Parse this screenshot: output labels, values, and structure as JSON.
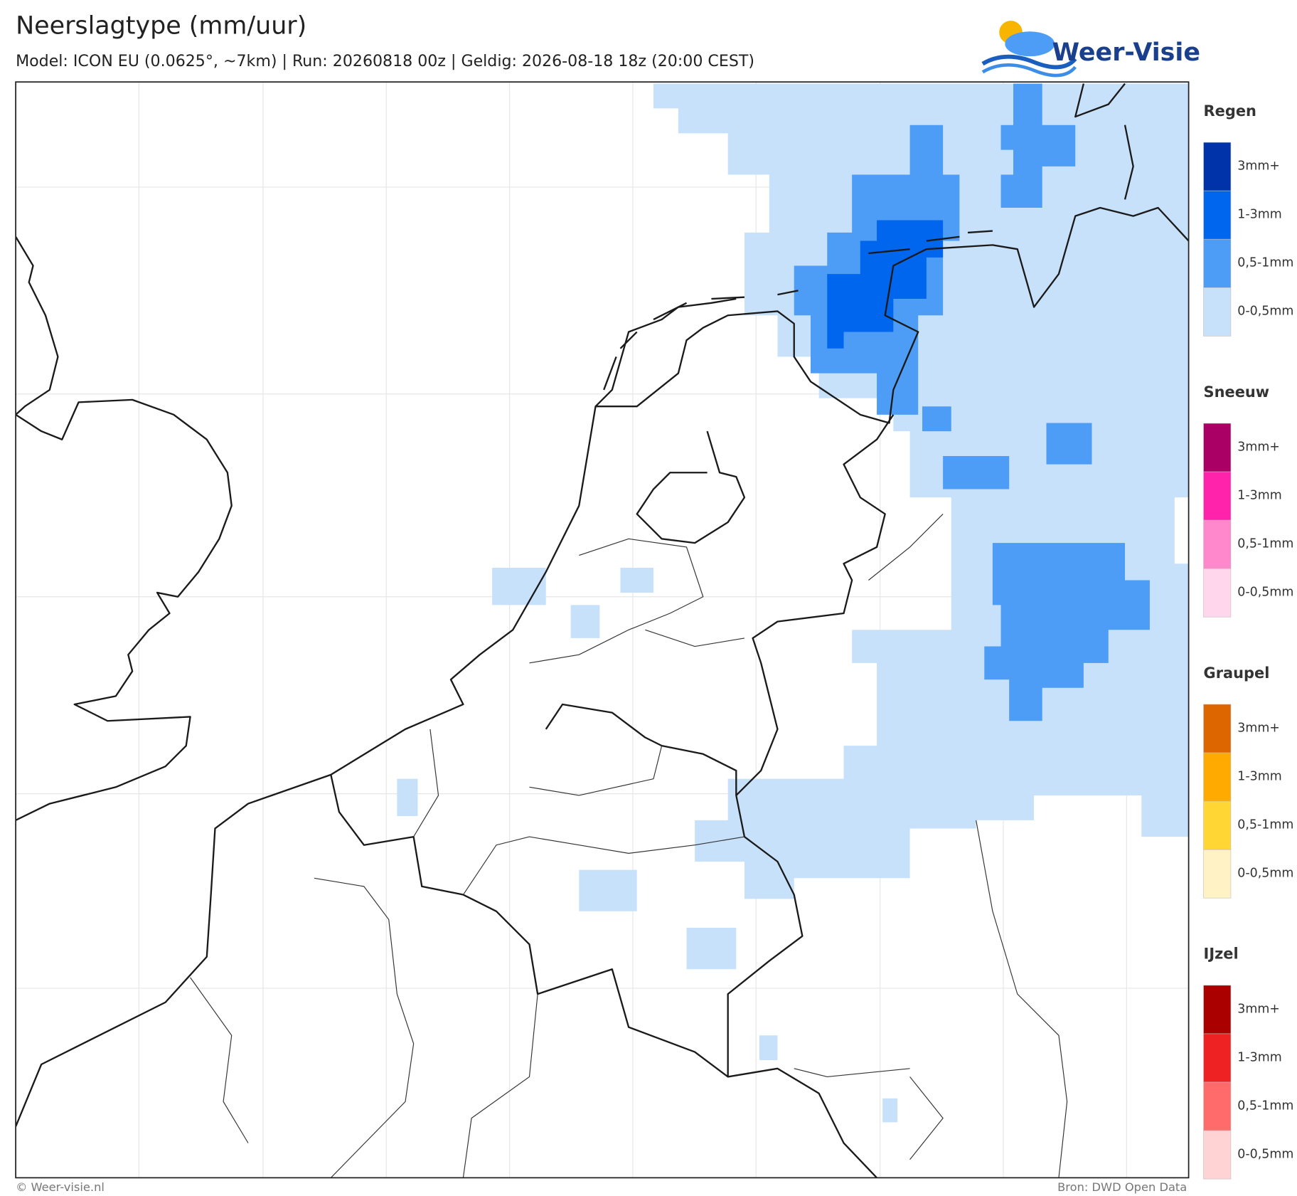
{
  "header": {
    "title": "Neerslagtype (mm/uur)",
    "subtitle": "Model: ICON EU (0.0625°, ~7km)  |  Run: 20260818 00z  |  Geldig: 2026-08-18 18z (20:00 CEST)",
    "logo": "Weer-Visie"
  },
  "legend": {
    "groups": [
      {
        "title": "Regen",
        "items": [
          {
            "label": "3mm+",
            "color": "#0033aa"
          },
          {
            "label": "1-3mm",
            "color": "#0066ee"
          },
          {
            "label": "0,5-1mm",
            "color": "#4d9cf5"
          },
          {
            "label": "0-0,5mm",
            "color": "#c8e1fb"
          }
        ]
      },
      {
        "title": "Sneeuw",
        "items": [
          {
            "label": "3mm+",
            "color": "#aa0066"
          },
          {
            "label": "1-3mm",
            "color": "#ff22aa"
          },
          {
            "label": "0,5-1mm",
            "color": "#ff88cc"
          },
          {
            "label": "0-0,5mm",
            "color": "#ffd6ec"
          }
        ]
      },
      {
        "title": "Graupel",
        "items": [
          {
            "label": "3mm+",
            "color": "#dd6600"
          },
          {
            "label": "1-3mm",
            "color": "#ffaa00"
          },
          {
            "label": "0,5-1mm",
            "color": "#ffd633"
          },
          {
            "label": "0-0,5mm",
            "color": "#fff2c4"
          }
        ]
      },
      {
        "title": "IJzel",
        "items": [
          {
            "label": "3mm+",
            "color": "#aa0000"
          },
          {
            "label": "1-3mm",
            "color": "#ee2222"
          },
          {
            "label": "0,5-1mm",
            "color": "#ff6b6b"
          },
          {
            "label": "0-0,5mm",
            "color": "#ffd3d3"
          }
        ]
      }
    ]
  },
  "footer": {
    "left": "© Weer-visie.nl",
    "right": "Bron: DWD Open Data"
  }
}
